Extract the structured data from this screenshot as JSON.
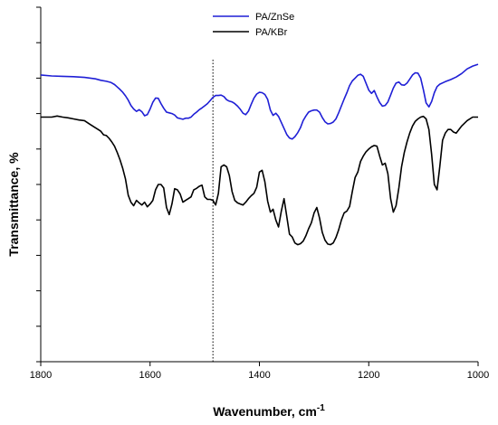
{
  "chart_data": {
    "type": "line",
    "title": "",
    "xlabel": "Wavenumber, cm",
    "xlabel_sup": "-1",
    "ylabel": "Transmittance, %",
    "xlim": [
      1800,
      1000
    ],
    "x_reversed": true,
    "ylim": [
      0,
      100
    ],
    "y_tick_labels_shown": false,
    "grid": false,
    "legend_position": "top-center",
    "x_ticks": [
      {
        "value": 1800,
        "label": "1800"
      },
      {
        "value": 1600,
        "label": "1600"
      },
      {
        "value": 1400,
        "label": "1400"
      },
      {
        "value": 1200,
        "label": "1200"
      },
      {
        "value": 1000,
        "label": "1000"
      }
    ],
    "y_ticks": [
      100,
      90,
      80,
      70,
      60,
      50,
      40,
      30,
      20,
      10,
      0
    ],
    "reference_line": {
      "x": 1485,
      "style": "dotted"
    },
    "series": [
      {
        "name": "PA/ZnSe",
        "color": "#1f1fd6",
        "x": [
          1800,
          1780,
          1760,
          1740,
          1720,
          1700,
          1690,
          1680,
          1672,
          1665,
          1660,
          1655,
          1650,
          1645,
          1640,
          1635,
          1630,
          1625,
          1620,
          1615,
          1610,
          1605,
          1600,
          1595,
          1590,
          1585,
          1580,
          1575,
          1570,
          1565,
          1560,
          1555,
          1550,
          1545,
          1540,
          1535,
          1530,
          1525,
          1520,
          1515,
          1510,
          1505,
          1500,
          1495,
          1490,
          1485,
          1480,
          1475,
          1470,
          1465,
          1460,
          1455,
          1450,
          1445,
          1440,
          1435,
          1430,
          1425,
          1420,
          1415,
          1410,
          1405,
          1400,
          1395,
          1390,
          1385,
          1380,
          1375,
          1370,
          1365,
          1360,
          1355,
          1350,
          1345,
          1340,
          1335,
          1330,
          1325,
          1320,
          1315,
          1310,
          1305,
          1300,
          1295,
          1290,
          1285,
          1280,
          1275,
          1270,
          1265,
          1260,
          1255,
          1250,
          1245,
          1240,
          1235,
          1230,
          1225,
          1220,
          1215,
          1210,
          1205,
          1200,
          1195,
          1190,
          1185,
          1180,
          1175,
          1170,
          1165,
          1160,
          1155,
          1150,
          1145,
          1140,
          1135,
          1130,
          1125,
          1120,
          1115,
          1110,
          1105,
          1100,
          1095,
          1090,
          1085,
          1080,
          1075,
          1070,
          1060,
          1050,
          1040,
          1030,
          1020,
          1010,
          1000
        ],
        "y": [
          80.9,
          80.6,
          80.5,
          80.4,
          80.2,
          79.8,
          79.4,
          79.1,
          78.8,
          78.2,
          77.5,
          76.8,
          76.0,
          75.0,
          73.8,
          72.3,
          71.3,
          70.6,
          71.1,
          70.5,
          69.4,
          69.7,
          71.3,
          73.2,
          74.4,
          74.3,
          72.8,
          71.5,
          70.4,
          70.2,
          70.0,
          69.6,
          68.8,
          68.6,
          68.4,
          68.7,
          68.7,
          69.0,
          69.8,
          70.4,
          71.1,
          71.6,
          72.2,
          72.8,
          73.7,
          74.6,
          75.1,
          75.1,
          75.2,
          74.8,
          73.9,
          73.5,
          73.3,
          72.8,
          72.1,
          71.2,
          70.1,
          69.7,
          70.7,
          72.6,
          74.4,
          75.5,
          76.0,
          75.9,
          75.4,
          74.0,
          71.0,
          69.5,
          70.1,
          69.2,
          67.5,
          65.8,
          64.1,
          63.1,
          62.8,
          63.5,
          64.6,
          66.0,
          68.0,
          69.3,
          70.4,
          70.8,
          71.0,
          71.0,
          70.4,
          68.9,
          67.7,
          67.1,
          67.2,
          67.6,
          68.5,
          70.2,
          72.2,
          74.1,
          75.9,
          77.9,
          79.2,
          80.0,
          80.8,
          81.1,
          80.5,
          78.6,
          76.6,
          75.7,
          76.5,
          74.7,
          73.1,
          72.1,
          72.3,
          73.3,
          75.2,
          77.2,
          78.6,
          78.9,
          78.1,
          78.0,
          78.6,
          79.7,
          80.9,
          81.5,
          81.4,
          80.0,
          76.7,
          73.0,
          71.9,
          73.4,
          75.9,
          77.6,
          78.3,
          79.0,
          79.6,
          80.3,
          81.3,
          82.6,
          83.4,
          83.9
        ]
      },
      {
        "name": "PA/KBr",
        "color": "#000000",
        "x": [
          1800,
          1780,
          1770,
          1760,
          1750,
          1740,
          1730,
          1720,
          1710,
          1700,
          1695,
          1690,
          1685,
          1680,
          1675,
          1670,
          1665,
          1660,
          1655,
          1650,
          1645,
          1640,
          1635,
          1630,
          1625,
          1620,
          1615,
          1610,
          1605,
          1600,
          1595,
          1590,
          1585,
          1580,
          1575,
          1570,
          1565,
          1560,
          1555,
          1550,
          1545,
          1540,
          1535,
          1530,
          1525,
          1520,
          1515,
          1510,
          1505,
          1500,
          1495,
          1490,
          1485,
          1480,
          1475,
          1470,
          1465,
          1460,
          1455,
          1450,
          1445,
          1440,
          1435,
          1430,
          1425,
          1420,
          1415,
          1410,
          1405,
          1400,
          1395,
          1390,
          1385,
          1380,
          1375,
          1370,
          1365,
          1360,
          1355,
          1350,
          1345,
          1340,
          1335,
          1330,
          1325,
          1320,
          1315,
          1310,
          1305,
          1300,
          1295,
          1290,
          1285,
          1280,
          1275,
          1270,
          1265,
          1260,
          1255,
          1250,
          1245,
          1240,
          1235,
          1230,
          1225,
          1220,
          1215,
          1210,
          1205,
          1200,
          1195,
          1190,
          1185,
          1180,
          1175,
          1170,
          1165,
          1160,
          1155,
          1150,
          1145,
          1140,
          1135,
          1130,
          1125,
          1120,
          1115,
          1110,
          1105,
          1100,
          1095,
          1090,
          1085,
          1080,
          1075,
          1070,
          1065,
          1060,
          1055,
          1050,
          1045,
          1040,
          1030,
          1020,
          1010,
          1000
        ],
        "y": [
          69.0,
          69.0,
          69.3,
          69.0,
          68.8,
          68.5,
          68.2,
          68.0,
          67.0,
          66.0,
          65.5,
          65.0,
          64.0,
          63.8,
          63.0,
          62.0,
          60.8,
          59.0,
          57.0,
          54.5,
          51.5,
          47.0,
          45.0,
          44.0,
          45.5,
          44.8,
          44.2,
          45.0,
          43.7,
          44.5,
          45.5,
          48.5,
          50.0,
          50.0,
          49.0,
          43.5,
          41.5,
          44.5,
          48.8,
          48.5,
          47.3,
          45.0,
          45.5,
          46.0,
          46.5,
          48.5,
          48.9,
          49.5,
          49.8,
          46.5,
          45.8,
          45.8,
          45.5,
          44.2,
          47.5,
          55.0,
          55.5,
          55.0,
          52.5,
          48.0,
          45.5,
          44.8,
          44.5,
          44.2,
          45.0,
          46.0,
          46.8,
          47.5,
          49.2,
          53.5,
          54.0,
          50.8,
          45.3,
          42.2,
          43.0,
          40.0,
          38.0,
          42.5,
          46.0,
          41.0,
          36.0,
          35.2,
          33.5,
          33.0,
          33.3,
          34.0,
          35.5,
          37.5,
          39.2,
          42.0,
          43.5,
          40.5,
          36.5,
          34.3,
          33.2,
          33.0,
          33.5,
          35.0,
          37.2,
          40.0,
          42.0,
          42.5,
          43.8,
          48.0,
          52.0,
          53.5,
          56.5,
          58.0,
          59.2,
          60.0,
          60.6,
          61.0,
          60.8,
          58.0,
          55.5,
          56.0,
          53.0,
          46.0,
          42.2,
          44.0,
          49.0,
          55.0,
          59.0,
          62.0,
          64.5,
          66.5,
          67.8,
          68.5,
          69.0,
          69.2,
          68.5,
          65.5,
          58.5,
          50.0,
          48.5,
          55.0,
          62.5,
          64.5,
          65.5,
          65.5,
          64.8,
          64.5,
          66.5,
          68.0,
          69.0,
          69.0
        ]
      }
    ]
  }
}
